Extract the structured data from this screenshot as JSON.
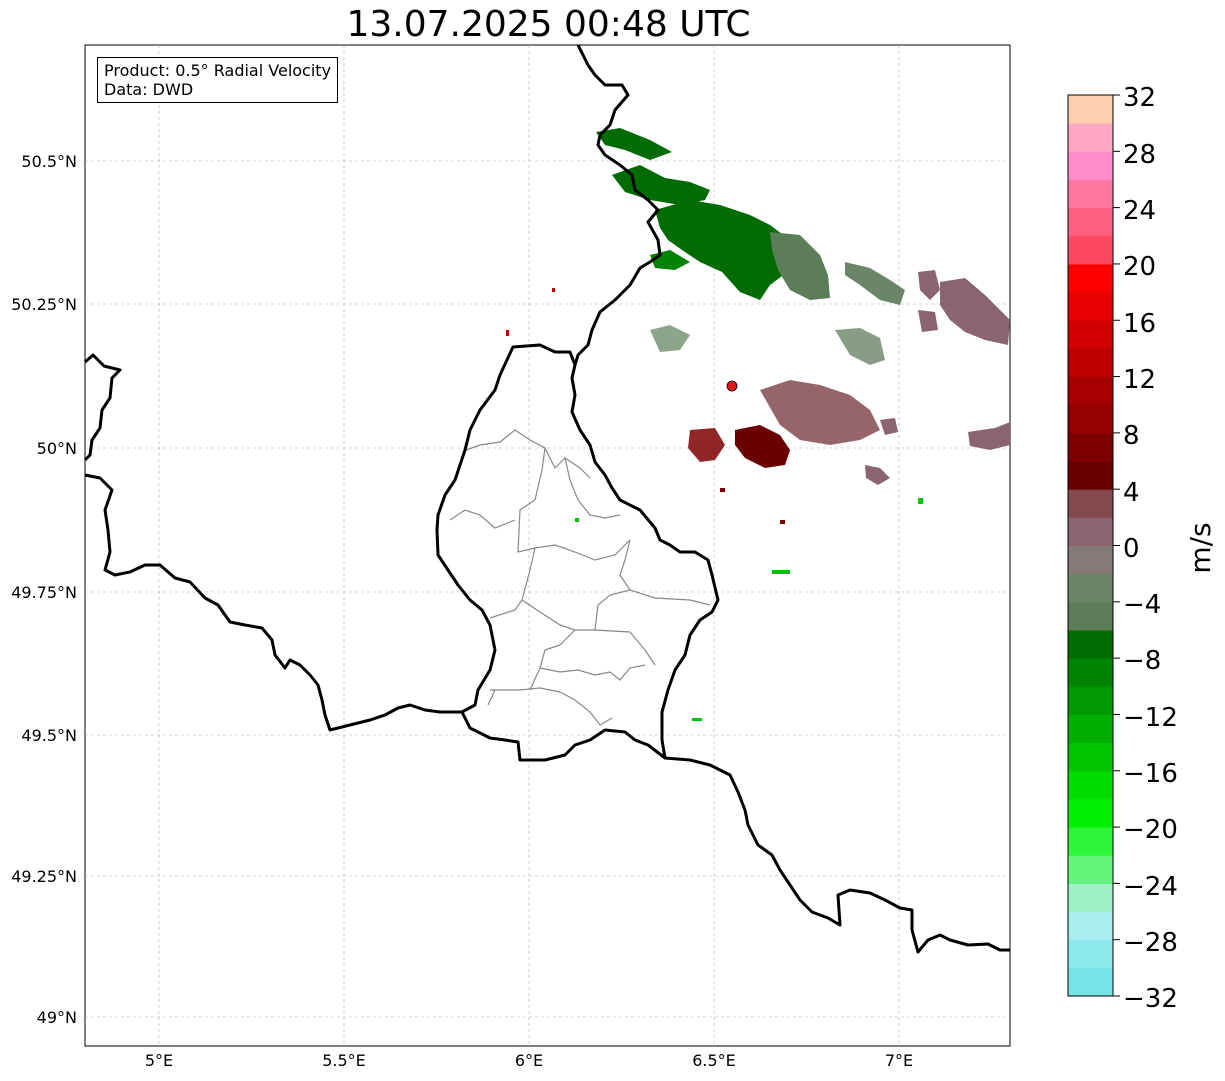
{
  "title": "13.07.2025 00:48 UTC",
  "info_box": {
    "product_line": "Product: 0.5° Radial Velocity",
    "data_line": "Data: DWD"
  },
  "map": {
    "lon_ticks": [
      "5°E",
      "5.5°E",
      "6°E",
      "6.5°E",
      "7°E"
    ],
    "lat_ticks": [
      "50.5°N",
      "50.25°N",
      "50°N",
      "49.75°N",
      "49.5°N",
      "49.25°N",
      "49°N"
    ],
    "extent": {
      "lon_min": 4.8,
      "lon_max": 7.3,
      "lat_min": 48.95,
      "lat_max": 50.7
    },
    "radar_site": {
      "lon": 6.55,
      "lat": 50.11,
      "color": "#e0161a"
    },
    "gridlines": true
  },
  "colorbar": {
    "label": "m/s",
    "tick_labels": [
      "32",
      "28",
      "24",
      "20",
      "16",
      "12",
      "8",
      "4",
      "0",
      "−4",
      "−8",
      "−12",
      "−16",
      "−20",
      "−24",
      "−28",
      "−32"
    ],
    "min": -32,
    "max": 32,
    "colors": [
      "#76e3e6",
      "#8ee9ec",
      "#a8eef0",
      "#9ef3c4",
      "#62f57c",
      "#2ef53a",
      "#00f000",
      "#00db00",
      "#00c400",
      "#00ae00",
      "#009800",
      "#008300",
      "#006b00",
      "#5b7d57",
      "#6b8568",
      "#847a78",
      "#8a6470",
      "#834a50",
      "#6a0000",
      "#7e0000",
      "#920000",
      "#a70000",
      "#bc0000",
      "#d10000",
      "#e60000",
      "#fa0000",
      "#ff4860",
      "#ff5f7f",
      "#ff77a0",
      "#ff8ccb",
      "#ffa8c6",
      "#ffcfb0"
    ]
  }
}
